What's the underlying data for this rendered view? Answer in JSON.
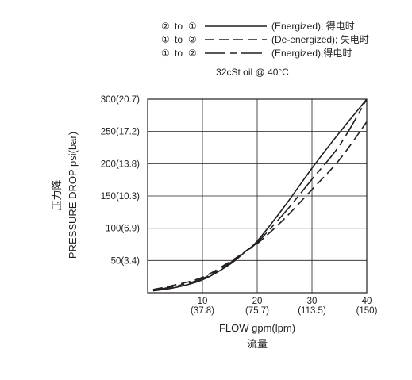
{
  "chart_data": {
    "type": "line",
    "legend": [
      {
        "from": "②",
        "to_word": "to",
        "to": "①",
        "line_style": "solid",
        "text": "(Energized); 得电时"
      },
      {
        "from": "①",
        "to_word": "to",
        "to": "②",
        "line_style": "dashed",
        "text": "(De-energized); 失电时"
      },
      {
        "from": "①",
        "to_word": "to",
        "to": "②",
        "line_style": "long-dash",
        "text": "(Energized);得电时"
      }
    ],
    "condition": "32cSt  oil @ 40°C",
    "ylabel": "PRESSURE DROP psi(bar)",
    "ylabel_cn": "压力降",
    "xlabel": "FLOW gpm(lpm)",
    "xlabel_cn": "流量",
    "xlim": [
      0,
      40
    ],
    "ylim": [
      0,
      300
    ],
    "xticks": [
      {
        "value": 10,
        "label": "10",
        "sub": "(37.8)"
      },
      {
        "value": 20,
        "label": "20",
        "sub": "(75.7)"
      },
      {
        "value": 30,
        "label": "30",
        "sub": "(113.5)"
      },
      {
        "value": 40,
        "label": "40",
        "sub": "(150)"
      }
    ],
    "yticks": [
      {
        "value": 50,
        "label": "50(3.4)"
      },
      {
        "value": 100,
        "label": "100(6.9)"
      },
      {
        "value": 150,
        "label": "150(10.3)"
      },
      {
        "value": 200,
        "label": "200(13.8)"
      },
      {
        "value": 250,
        "label": "250(17.2)"
      },
      {
        "value": 300,
        "label": "300(20.7)"
      }
    ],
    "grid": true,
    "series": [
      {
        "name": "② to ① (Energized); 得电时",
        "line_style": "solid",
        "x": [
          1,
          5,
          10,
          15,
          18,
          20,
          25,
          30,
          35,
          40
        ],
        "y": [
          3,
          8,
          20,
          44,
          65,
          80,
          134,
          193,
          248,
          300
        ]
      },
      {
        "name": "① to ② (De-energized); 失电时",
        "line_style": "dashed",
        "x": [
          1,
          5,
          10,
          15,
          18,
          20,
          25,
          30,
          35,
          40
        ],
        "y": [
          5,
          12,
          24,
          48,
          65,
          76,
          115,
          160,
          206,
          265
        ]
      },
      {
        "name": "① to ② (Energized);得电时",
        "line_style": "long-dash",
        "x": [
          1,
          5,
          10,
          15,
          18,
          20,
          25,
          30,
          35,
          40
        ],
        "y": [
          4,
          10,
          22,
          46,
          65,
          78,
          124,
          176,
          228,
          300
        ]
      }
    ]
  }
}
